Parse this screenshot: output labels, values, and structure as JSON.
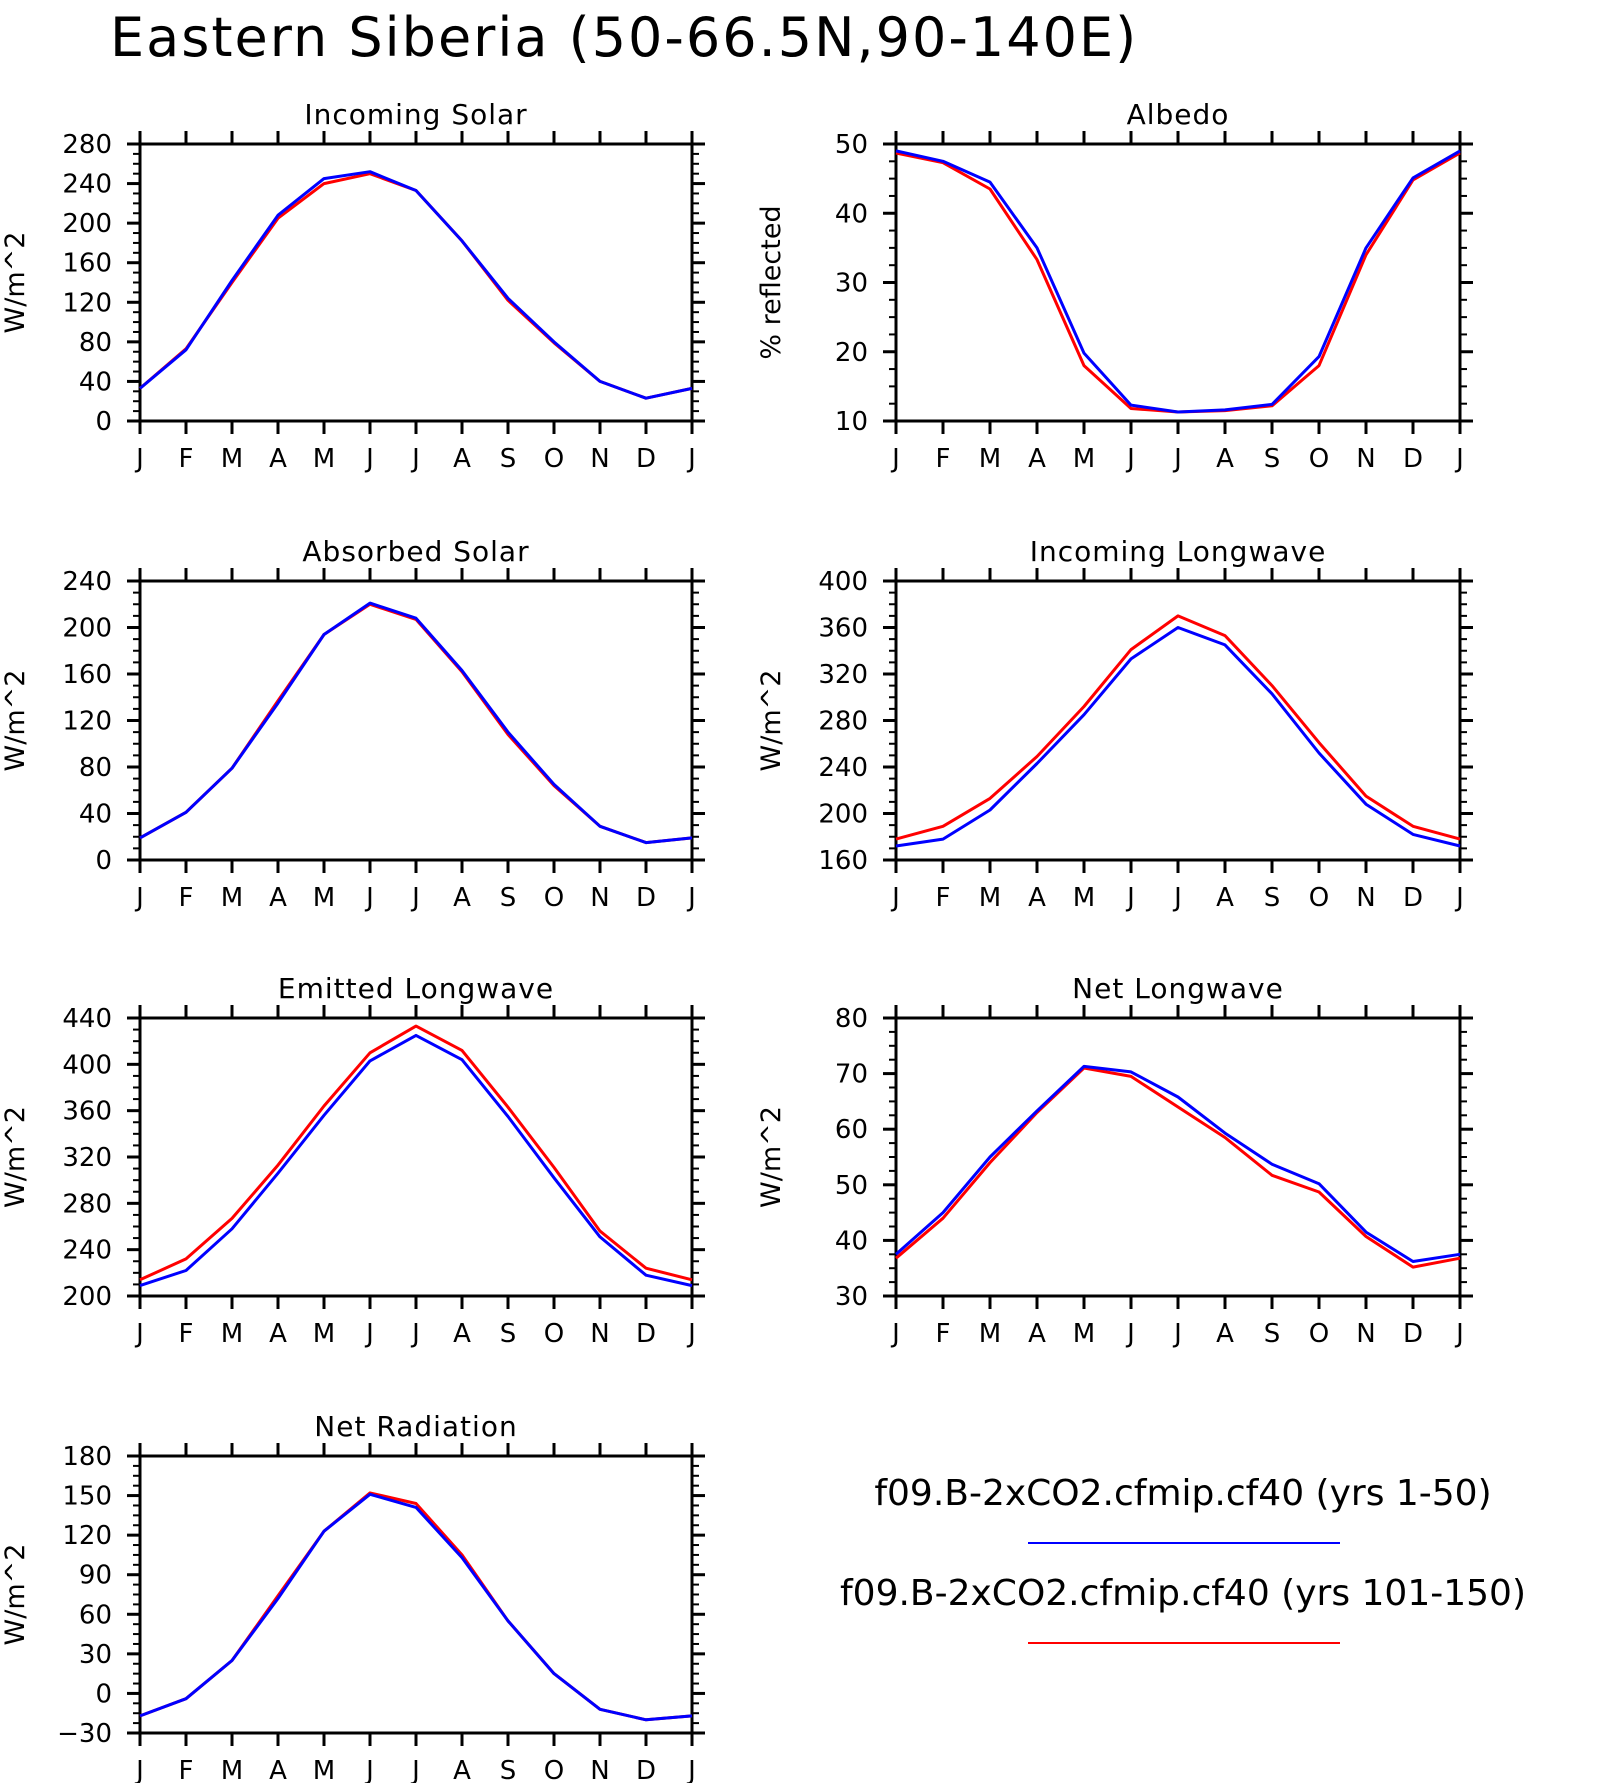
{
  "title": "Eastern Siberia (50-66.5N,90-140E)",
  "colors": {
    "series1": "#0000ff",
    "series2": "#ff0000",
    "axis": "#000000"
  },
  "legend": {
    "entries": [
      {
        "label": "f09.B-2xCO2.cfmip.cf40 (yrs 1-50)",
        "color": "#0000ff"
      },
      {
        "label": "f09.B-2xCO2.cfmip.cf40 (yrs 101-150)",
        "color": "#ff0000"
      }
    ]
  },
  "chart_data": [
    {
      "type": "line",
      "title": "Incoming Solar",
      "ylabel": "W/m^2",
      "ylim": [
        0,
        280
      ],
      "yticks": [
        0,
        40,
        80,
        120,
        160,
        200,
        240,
        280
      ],
      "categories": [
        "J",
        "F",
        "M",
        "A",
        "M",
        "J",
        "J",
        "A",
        "S",
        "O",
        "N",
        "D",
        "J"
      ],
      "series": [
        {
          "name": "f09.B-2xCO2.cfmip.cf40 (yrs 101-150)",
          "color": "#ff0000",
          "values": [
            33,
            73,
            140,
            205,
            240,
            250,
            233,
            182,
            122,
            79,
            40,
            23,
            33
          ]
        },
        {
          "name": "f09.B-2xCO2.cfmip.cf40 (yrs 1-50)",
          "color": "#0000ff",
          "values": [
            33,
            72,
            142,
            208,
            245,
            252,
            233,
            182,
            124,
            80,
            40,
            23,
            33
          ]
        }
      ]
    },
    {
      "type": "line",
      "title": "Albedo",
      "ylabel": "% reflected",
      "ylim": [
        10,
        50
      ],
      "yticks": [
        10,
        20,
        30,
        40,
        50
      ],
      "categories": [
        "J",
        "F",
        "M",
        "A",
        "M",
        "J",
        "J",
        "A",
        "S",
        "O",
        "N",
        "D",
        "J"
      ],
      "series": [
        {
          "name": "f09.B-2xCO2.cfmip.cf40 (yrs 101-150)",
          "color": "#ff0000",
          "values": [
            48.7,
            47.3,
            43.5,
            33.3,
            18.0,
            11.8,
            11.3,
            11.5,
            12.2,
            18.0,
            34.0,
            44.8,
            48.7
          ]
        },
        {
          "name": "f09.B-2xCO2.cfmip.cf40 (yrs 1-50)",
          "color": "#0000ff",
          "values": [
            49.0,
            47.5,
            44.5,
            35.0,
            19.8,
            12.3,
            11.3,
            11.6,
            12.4,
            19.3,
            35.0,
            45.1,
            49.0
          ]
        }
      ]
    },
    {
      "type": "line",
      "title": "Absorbed Solar",
      "ylabel": "W/m^2",
      "ylim": [
        0,
        240
      ],
      "yticks": [
        0,
        40,
        80,
        120,
        160,
        200,
        240
      ],
      "categories": [
        "J",
        "F",
        "M",
        "A",
        "M",
        "J",
        "J",
        "A",
        "S",
        "O",
        "N",
        "D",
        "J"
      ],
      "series": [
        {
          "name": "f09.B-2xCO2.cfmip.cf40 (yrs 101-150)",
          "color": "#ff0000",
          "values": [
            19,
            41,
            79,
            137,
            194,
            220,
            207,
            162,
            108,
            64,
            29,
            15,
            19
          ]
        },
        {
          "name": "f09.B-2xCO2.cfmip.cf40 (yrs 1-50)",
          "color": "#0000ff",
          "values": [
            19,
            41,
            79,
            135,
            194,
            221,
            208,
            163,
            110,
            65,
            29,
            15,
            19
          ]
        }
      ]
    },
    {
      "type": "line",
      "title": "Incoming Longwave",
      "ylabel": "W/m^2",
      "ylim": [
        160,
        400
      ],
      "yticks": [
        160,
        200,
        240,
        280,
        320,
        360,
        400
      ],
      "categories": [
        "J",
        "F",
        "M",
        "A",
        "M",
        "J",
        "J",
        "A",
        "S",
        "O",
        "N",
        "D",
        "J"
      ],
      "series": [
        {
          "name": "f09.B-2xCO2.cfmip.cf40 (yrs 101-150)",
          "color": "#ff0000",
          "values": [
            178,
            189,
            213,
            249,
            292,
            341,
            370,
            353,
            310,
            261,
            215,
            189,
            178
          ]
        },
        {
          "name": "f09.B-2xCO2.cfmip.cf40 (yrs 1-50)",
          "color": "#0000ff",
          "values": [
            172,
            178,
            203,
            243,
            285,
            333,
            360,
            345,
            303,
            252,
            208,
            182,
            172
          ]
        }
      ]
    },
    {
      "type": "line",
      "title": "Emitted Longwave",
      "ylabel": "W/m^2",
      "ylim": [
        200,
        440
      ],
      "yticks": [
        200,
        240,
        280,
        320,
        360,
        400,
        440
      ],
      "categories": [
        "J",
        "F",
        "M",
        "A",
        "M",
        "J",
        "J",
        "A",
        "S",
        "O",
        "N",
        "D",
        "J"
      ],
      "series": [
        {
          "name": "f09.B-2xCO2.cfmip.cf40 (yrs 101-150)",
          "color": "#ff0000",
          "values": [
            214,
            232,
            267,
            313,
            364,
            410,
            433,
            412,
            363,
            311,
            256,
            224,
            214
          ]
        },
        {
          "name": "f09.B-2xCO2.cfmip.cf40 (yrs 1-50)",
          "color": "#0000ff",
          "values": [
            209,
            222,
            258,
            306,
            356,
            403,
            425,
            404,
            355,
            302,
            251,
            218,
            209
          ]
        }
      ]
    },
    {
      "type": "line",
      "title": "Net Longwave",
      "ylabel": "W/m^2",
      "ylim": [
        30,
        80
      ],
      "yticks": [
        30,
        40,
        50,
        60,
        70,
        80
      ],
      "categories": [
        "J",
        "F",
        "M",
        "A",
        "M",
        "J",
        "J",
        "A",
        "S",
        "O",
        "N",
        "D",
        "J"
      ],
      "series": [
        {
          "name": "f09.B-2xCO2.cfmip.cf40 (yrs 101-150)",
          "color": "#ff0000",
          "values": [
            36.8,
            44.0,
            54.0,
            63.0,
            71.0,
            69.5,
            64.0,
            58.5,
            51.7,
            48.7,
            40.7,
            35.2,
            36.8
          ]
        },
        {
          "name": "f09.B-2xCO2.cfmip.cf40 (yrs 1-50)",
          "color": "#0000ff",
          "values": [
            37.5,
            45.0,
            55.0,
            63.3,
            71.3,
            70.3,
            65.8,
            59.3,
            53.7,
            50.2,
            41.5,
            36.2,
            37.5
          ]
        }
      ]
    },
    {
      "type": "line",
      "title": "Net Radiation",
      "ylabel": "W/m^2",
      "ylim": [
        -30,
        180
      ],
      "yticks": [
        -30,
        0,
        30,
        60,
        90,
        120,
        150,
        180
      ],
      "categories": [
        "J",
        "F",
        "M",
        "A",
        "M",
        "J",
        "J",
        "A",
        "S",
        "O",
        "N",
        "D",
        "J"
      ],
      "series": [
        {
          "name": "f09.B-2xCO2.cfmip.cf40 (yrs 101-150)",
          "color": "#ff0000",
          "values": [
            -17,
            -4,
            25,
            74,
            123,
            152,
            144,
            105,
            55,
            15,
            -12,
            -20,
            -17
          ]
        },
        {
          "name": "f09.B-2xCO2.cfmip.cf40 (yrs 1-50)",
          "color": "#0000ff",
          "values": [
            -17,
            -4,
            25,
            72,
            123,
            151,
            141,
            103,
            55,
            15,
            -12,
            -20,
            -17
          ]
        }
      ]
    }
  ]
}
